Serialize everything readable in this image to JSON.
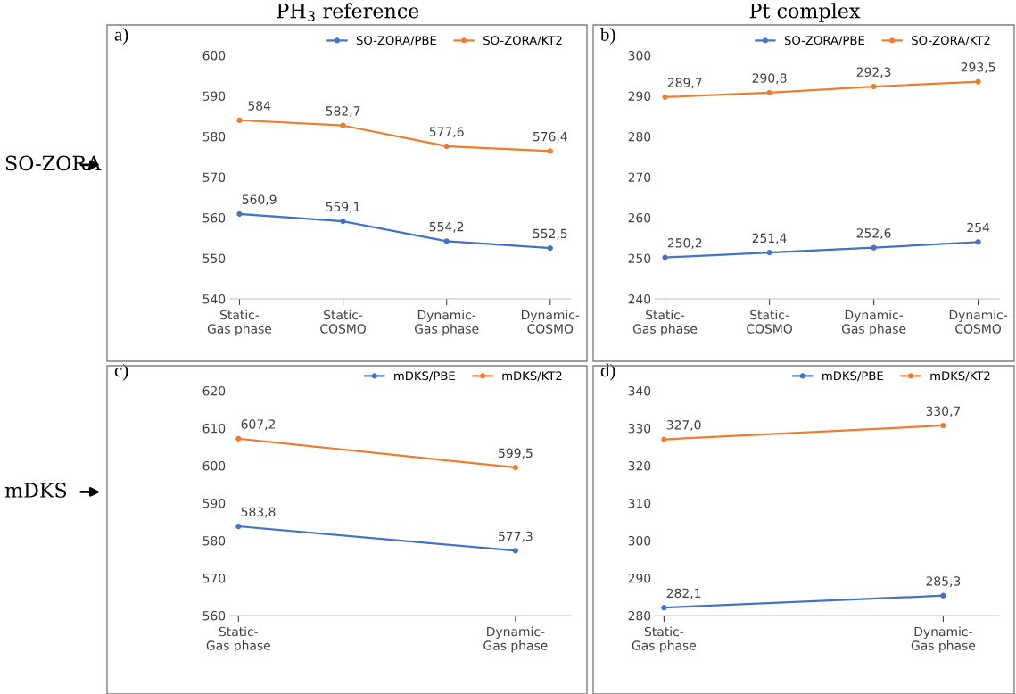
{
  "chart_data": [
    {
      "type": "line",
      "title": "a)",
      "categories": [
        "Static-\nGas phase",
        "Static-\nCOSMO",
        "Dynamic-\nGas phase",
        "Dynamic-\nCOSMO"
      ],
      "ylim": [
        540,
        600
      ],
      "yticks": [
        540,
        550,
        560,
        570,
        580,
        590,
        600
      ],
      "marker": "circle",
      "legend": "top right",
      "grid": false,
      "annotations": [
        "PH$_{3}$ reference",
        "SO-ZORA"
      ],
      "series": [
        {
          "name": "SO-ZORA/PBE",
          "color": "#4472c4",
          "values": [
            560.9,
            559.1,
            554.2,
            552.5
          ],
          "value_labels": [
            "560,9",
            "559,1",
            "554,2",
            "552,5"
          ]
        },
        {
          "name": "SO-ZORA/KT2",
          "color": "#ed7d31",
          "values": [
            584,
            582.7,
            577.6,
            576.4
          ],
          "value_labels": [
            "584",
            "582,7",
            "577,6",
            "576,4"
          ]
        }
      ]
    },
    {
      "type": "line",
      "title": "b)",
      "categories": [
        "Static-\nGas phase",
        "Static-\nCOSMO",
        "Dynamic-\nGas phase",
        "Dynamic-\nCOSMO"
      ],
      "ylim": [
        240,
        300
      ],
      "yticks": [
        240,
        250,
        260,
        270,
        280,
        290,
        300
      ],
      "marker": "circle",
      "legend": "top right",
      "grid": false,
      "annotations": [
        "Pt complex"
      ],
      "series": [
        {
          "name": "SO-ZORA/PBE",
          "color": "#4472c4",
          "values": [
            250.2,
            251.4,
            252.6,
            254
          ],
          "value_labels": [
            "250,2",
            "251,4",
            "252,6",
            "254"
          ]
        },
        {
          "name": "SO-ZORA/KT2",
          "color": "#ed7d31",
          "values": [
            289.7,
            290.8,
            292.3,
            293.5
          ],
          "value_labels": [
            "289,7",
            "290,8",
            "292,3",
            "293,5"
          ]
        }
      ]
    },
    {
      "type": "line",
      "title": "c)",
      "categories": [
        "Static-\nGas phase",
        "Dynamic-\nGas phase"
      ],
      "ylim": [
        560,
        620
      ],
      "yticks": [
        560,
        570,
        580,
        590,
        600,
        610,
        620
      ],
      "marker": "circle",
      "legend": "top right",
      "grid": false,
      "annotations": [
        "mDKS"
      ],
      "series": [
        {
          "name": "mDKS/PBE",
          "color": "#4472c4",
          "values": [
            583.8,
            577.3
          ],
          "value_labels": [
            "583,8",
            "577,3"
          ]
        },
        {
          "name": "mDKS/KT2",
          "color": "#ed7d31",
          "values": [
            607.2,
            599.5
          ],
          "value_labels": [
            "607,2",
            "599,5"
          ]
        }
      ]
    },
    {
      "type": "line",
      "title": "d)",
      "categories": [
        "Static-\nGas phase",
        "Dynamic-\nGas phase"
      ],
      "ylim": [
        280,
        340
      ],
      "yticks": [
        280,
        290,
        300,
        310,
        320,
        330,
        340
      ],
      "marker": "circle",
      "legend": "top right",
      "grid": false,
      "series": [
        {
          "name": "mDKS/PBE",
          "color": "#4472c4",
          "values": [
            282.1,
            285.3
          ],
          "value_labels": [
            "282,1",
            "285,3"
          ]
        },
        {
          "name": "mDKS/KT2",
          "color": "#ed7d31",
          "values": [
            327.0,
            330.7
          ],
          "value_labels": [
            "327,0",
            "330,7"
          ]
        }
      ]
    }
  ]
}
